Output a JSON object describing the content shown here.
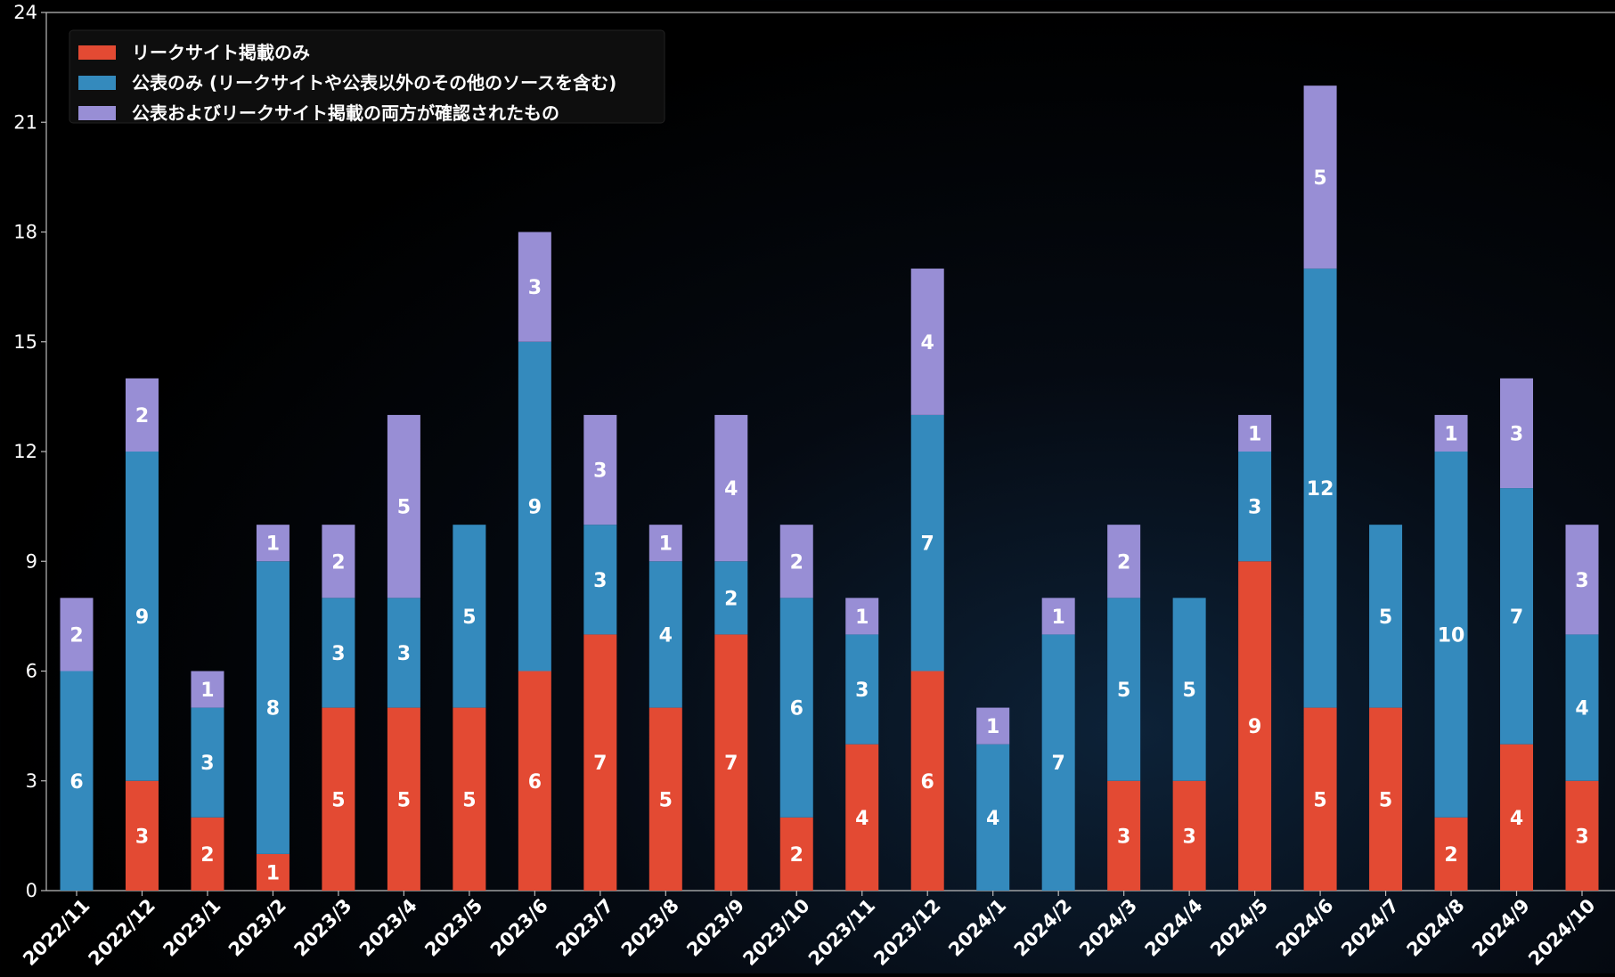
{
  "chart_data": {
    "type": "bar",
    "stacked": true,
    "categories": [
      "2022/11",
      "2022/12",
      "2023/1",
      "2023/2",
      "2023/3",
      "2023/4",
      "2023/5",
      "2023/6",
      "2023/7",
      "2023/8",
      "2023/9",
      "2023/10",
      "2023/11",
      "2023/12",
      "2024/1",
      "2024/2",
      "2024/3",
      "2024/4",
      "2024/5",
      "2024/6",
      "2024/7",
      "2024/8",
      "2024/9",
      "2024/10"
    ],
    "series": [
      {
        "name": "リークサイト掲載のみ",
        "color": "#e34a33",
        "values": [
          0,
          3,
          2,
          1,
          5,
          5,
          5,
          6,
          7,
          5,
          7,
          2,
          4,
          6,
          0,
          0,
          3,
          3,
          9,
          5,
          5,
          2,
          4,
          3
        ]
      },
      {
        "name": "公表のみ (リークサイトや公表以外のその他のソースを含む)",
        "color": "#348abd",
        "values": [
          6,
          9,
          3,
          8,
          3,
          3,
          5,
          9,
          3,
          4,
          2,
          6,
          3,
          7,
          4,
          7,
          5,
          5,
          3,
          12,
          5,
          10,
          7,
          4
        ]
      },
      {
        "name": "公表およびリークサイト掲載の両方が確認されたもの",
        "color": "#988ed5",
        "values": [
          2,
          2,
          1,
          1,
          2,
          5,
          0,
          3,
          3,
          1,
          4,
          2,
          1,
          4,
          1,
          1,
          2,
          0,
          1,
          5,
          0,
          1,
          3,
          3
        ]
      }
    ],
    "yticks": [
      0,
      3,
      6,
      9,
      12,
      15,
      18,
      21,
      24
    ],
    "ylim": [
      0,
      24
    ],
    "legend": "top-left",
    "grid": false,
    "show_value_labels": true
  }
}
